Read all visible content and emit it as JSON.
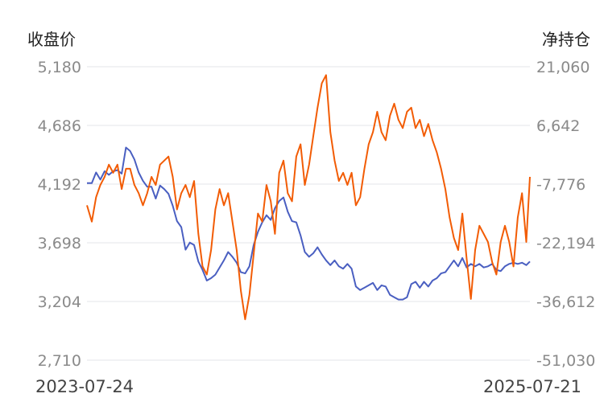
{
  "chart_data": {
    "type": "line",
    "x_range": [
      "2023-07-24",
      "2025-07-21"
    ],
    "x_tick_labels": [
      "2023-07-24",
      "2025-07-21"
    ],
    "left_axis": {
      "title": "收盘价",
      "ticks": [
        "5,180",
        "4,686",
        "4,192",
        "3,698",
        "3,204",
        "2,710"
      ],
      "ylim": [
        2710,
        5180
      ]
    },
    "right_axis": {
      "title": "净持仓",
      "ticks": [
        "21,060",
        "6,642",
        "-7,776",
        "-22,194",
        "-36,612",
        "-51,030"
      ],
      "ylim": [
        -51030,
        21060
      ]
    },
    "grid": true,
    "colors": {
      "close": "#4a5fc1",
      "position": "#f25c05"
    },
    "series": [
      {
        "axis": "left",
        "color": "#4a5fc1",
        "points": [
          [
            "2023-07-24",
            4200
          ],
          [
            "2023-08-01",
            4200
          ],
          [
            "2023-08-08",
            4290
          ],
          [
            "2023-08-15",
            4230
          ],
          [
            "2023-08-22",
            4300
          ],
          [
            "2023-08-29",
            4270
          ],
          [
            "2023-09-05",
            4300
          ],
          [
            "2023-09-12",
            4310
          ],
          [
            "2023-09-19",
            4280
          ],
          [
            "2023-09-26",
            4500
          ],
          [
            "2023-10-03",
            4470
          ],
          [
            "2023-10-10",
            4400
          ],
          [
            "2023-10-17",
            4290
          ],
          [
            "2023-10-24",
            4220
          ],
          [
            "2023-10-31",
            4170
          ],
          [
            "2023-11-07",
            4170
          ],
          [
            "2023-11-14",
            4070
          ],
          [
            "2023-11-21",
            4180
          ],
          [
            "2023-11-28",
            4150
          ],
          [
            "2023-12-05",
            4110
          ],
          [
            "2023-12-12",
            4010
          ],
          [
            "2023-12-19",
            3880
          ],
          [
            "2023-12-26",
            3830
          ],
          [
            "2024-01-02",
            3640
          ],
          [
            "2024-01-09",
            3700
          ],
          [
            "2024-01-16",
            3680
          ],
          [
            "2024-01-23",
            3540
          ],
          [
            "2024-01-30",
            3470
          ],
          [
            "2024-02-06",
            3380
          ],
          [
            "2024-02-13",
            3400
          ],
          [
            "2024-02-20",
            3430
          ],
          [
            "2024-02-27",
            3490
          ],
          [
            "2024-03-05",
            3550
          ],
          [
            "2024-03-12",
            3620
          ],
          [
            "2024-03-19",
            3580
          ],
          [
            "2024-03-26",
            3530
          ],
          [
            "2024-04-02",
            3450
          ],
          [
            "2024-04-09",
            3440
          ],
          [
            "2024-04-16",
            3500
          ],
          [
            "2024-04-23",
            3680
          ],
          [
            "2024-04-30",
            3790
          ],
          [
            "2024-05-07",
            3870
          ],
          [
            "2024-05-14",
            3930
          ],
          [
            "2024-05-21",
            3890
          ],
          [
            "2024-05-28",
            3990
          ],
          [
            "2024-06-04",
            4050
          ],
          [
            "2024-06-11",
            4080
          ],
          [
            "2024-06-18",
            3960
          ],
          [
            "2024-06-25",
            3880
          ],
          [
            "2024-07-02",
            3870
          ],
          [
            "2024-07-09",
            3760
          ],
          [
            "2024-07-16",
            3620
          ],
          [
            "2024-07-23",
            3580
          ],
          [
            "2024-07-30",
            3610
          ],
          [
            "2024-08-06",
            3660
          ],
          [
            "2024-08-13",
            3600
          ],
          [
            "2024-08-20",
            3550
          ],
          [
            "2024-08-27",
            3510
          ],
          [
            "2024-09-03",
            3550
          ],
          [
            "2024-09-10",
            3500
          ],
          [
            "2024-09-17",
            3480
          ],
          [
            "2024-09-24",
            3520
          ],
          [
            "2024-10-01",
            3480
          ],
          [
            "2024-10-08",
            3330
          ],
          [
            "2024-10-15",
            3300
          ],
          [
            "2024-10-22",
            3320
          ],
          [
            "2024-10-29",
            3340
          ],
          [
            "2024-11-05",
            3360
          ],
          [
            "2024-11-12",
            3300
          ],
          [
            "2024-11-19",
            3340
          ],
          [
            "2024-11-26",
            3330
          ],
          [
            "2024-12-03",
            3260
          ],
          [
            "2024-12-10",
            3240
          ],
          [
            "2024-12-17",
            3220
          ],
          [
            "2024-12-24",
            3220
          ],
          [
            "2024-12-31",
            3240
          ],
          [
            "2025-01-07",
            3350
          ],
          [
            "2025-01-14",
            3370
          ],
          [
            "2025-01-21",
            3320
          ],
          [
            "2025-01-28",
            3370
          ],
          [
            "2025-02-04",
            3330
          ],
          [
            "2025-02-11",
            3380
          ],
          [
            "2025-02-18",
            3400
          ],
          [
            "2025-02-25",
            3440
          ],
          [
            "2025-03-04",
            3450
          ],
          [
            "2025-03-11",
            3500
          ],
          [
            "2025-03-18",
            3550
          ],
          [
            "2025-03-25",
            3500
          ],
          [
            "2025-04-01",
            3570
          ],
          [
            "2025-04-08",
            3490
          ],
          [
            "2025-04-15",
            3520
          ],
          [
            "2025-04-22",
            3500
          ],
          [
            "2025-04-29",
            3520
          ],
          [
            "2025-05-06",
            3490
          ],
          [
            "2025-05-13",
            3500
          ],
          [
            "2025-05-20",
            3520
          ],
          [
            "2025-05-27",
            3470
          ],
          [
            "2025-06-03",
            3460
          ],
          [
            "2025-06-10",
            3500
          ],
          [
            "2025-06-17",
            3520
          ],
          [
            "2025-06-24",
            3530
          ],
          [
            "2025-07-01",
            3520
          ],
          [
            "2025-07-08",
            3530
          ],
          [
            "2025-07-15",
            3510
          ],
          [
            "2025-07-21",
            3540
          ]
        ]
      },
      {
        "axis": "right",
        "color": "#f25c05",
        "points": [
          [
            "2023-07-24",
            -13000
          ],
          [
            "2023-08-01",
            -17000
          ],
          [
            "2023-08-08",
            -11000
          ],
          [
            "2023-08-15",
            -8000
          ],
          [
            "2023-08-22",
            -6000
          ],
          [
            "2023-08-29",
            -3000
          ],
          [
            "2023-09-05",
            -5000
          ],
          [
            "2023-09-12",
            -3000
          ],
          [
            "2023-09-19",
            -9000
          ],
          [
            "2023-09-26",
            -4000
          ],
          [
            "2023-10-03",
            -4000
          ],
          [
            "2023-10-10",
            -8000
          ],
          [
            "2023-10-17",
            -10000
          ],
          [
            "2023-10-24",
            -13000
          ],
          [
            "2023-10-31",
            -10000
          ],
          [
            "2023-11-07",
            -6000
          ],
          [
            "2023-11-14",
            -8000
          ],
          [
            "2023-11-21",
            -3000
          ],
          [
            "2023-11-28",
            -2000
          ],
          [
            "2023-12-05",
            -1000
          ],
          [
            "2023-12-12",
            -6000
          ],
          [
            "2023-12-19",
            -14000
          ],
          [
            "2023-12-26",
            -10000
          ],
          [
            "2024-01-02",
            -8000
          ],
          [
            "2024-01-09",
            -11000
          ],
          [
            "2024-01-16",
            -7000
          ],
          [
            "2024-01-23",
            -20000
          ],
          [
            "2024-01-30",
            -28000
          ],
          [
            "2024-02-06",
            -30000
          ],
          [
            "2024-02-13",
            -24000
          ],
          [
            "2024-02-20",
            -14000
          ],
          [
            "2024-02-27",
            -9000
          ],
          [
            "2024-03-05",
            -13000
          ],
          [
            "2024-03-12",
            -10000
          ],
          [
            "2024-03-19",
            -17000
          ],
          [
            "2024-03-26",
            -24000
          ],
          [
            "2024-04-02",
            -34000
          ],
          [
            "2024-04-09",
            -41000
          ],
          [
            "2024-04-16",
            -35000
          ],
          [
            "2024-04-23",
            -25000
          ],
          [
            "2024-04-30",
            -15000
          ],
          [
            "2024-05-07",
            -17000
          ],
          [
            "2024-05-14",
            -8000
          ],
          [
            "2024-05-21",
            -12000
          ],
          [
            "2024-05-28",
            -20000
          ],
          [
            "2024-06-04",
            -5000
          ],
          [
            "2024-06-11",
            -2000
          ],
          [
            "2024-06-18",
            -10000
          ],
          [
            "2024-06-25",
            -12000
          ],
          [
            "2024-07-02",
            -1000
          ],
          [
            "2024-07-09",
            2000
          ],
          [
            "2024-07-16",
            -8000
          ],
          [
            "2024-07-23",
            -3000
          ],
          [
            "2024-07-30",
            4000
          ],
          [
            "2024-08-06",
            11000
          ],
          [
            "2024-08-13",
            17000
          ],
          [
            "2024-08-20",
            19000
          ],
          [
            "2024-08-27",
            5000
          ],
          [
            "2024-09-03",
            -2000
          ],
          [
            "2024-09-10",
            -7000
          ],
          [
            "2024-09-17",
            -5000
          ],
          [
            "2024-09-24",
            -8000
          ],
          [
            "2024-10-01",
            -5000
          ],
          [
            "2024-10-08",
            -13000
          ],
          [
            "2024-10-15",
            -11000
          ],
          [
            "2024-10-22",
            -4000
          ],
          [
            "2024-10-29",
            2000
          ],
          [
            "2024-11-05",
            5000
          ],
          [
            "2024-11-12",
            10000
          ],
          [
            "2024-11-19",
            5000
          ],
          [
            "2024-11-26",
            3000
          ],
          [
            "2024-12-03",
            9000
          ],
          [
            "2024-12-10",
            12000
          ],
          [
            "2024-12-17",
            8000
          ],
          [
            "2024-12-24",
            6000
          ],
          [
            "2024-12-31",
            10000
          ],
          [
            "2025-01-07",
            11000
          ],
          [
            "2025-01-14",
            6000
          ],
          [
            "2025-01-21",
            8000
          ],
          [
            "2025-01-28",
            4000
          ],
          [
            "2025-02-04",
            7000
          ],
          [
            "2025-02-11",
            3000
          ],
          [
            "2025-02-18",
            0
          ],
          [
            "2025-02-25",
            -4000
          ],
          [
            "2025-03-04",
            -9000
          ],
          [
            "2025-03-11",
            -16000
          ],
          [
            "2025-03-18",
            -21000
          ],
          [
            "2025-03-25",
            -24000
          ],
          [
            "2025-04-01",
            -15000
          ],
          [
            "2025-04-08",
            -26000
          ],
          [
            "2025-04-15",
            -36000
          ],
          [
            "2025-04-22",
            -24000
          ],
          [
            "2025-04-29",
            -18000
          ],
          [
            "2025-05-06",
            -20000
          ],
          [
            "2025-05-13",
            -22000
          ],
          [
            "2025-05-20",
            -27000
          ],
          [
            "2025-05-27",
            -30000
          ],
          [
            "2025-06-03",
            -22000
          ],
          [
            "2025-06-10",
            -18000
          ],
          [
            "2025-06-17",
            -22000
          ],
          [
            "2025-06-24",
            -28000
          ],
          [
            "2025-07-01",
            -16000
          ],
          [
            "2025-07-08",
            -10000
          ],
          [
            "2025-07-15",
            -22000
          ],
          [
            "2025-07-21",
            -6000
          ]
        ]
      }
    ]
  }
}
